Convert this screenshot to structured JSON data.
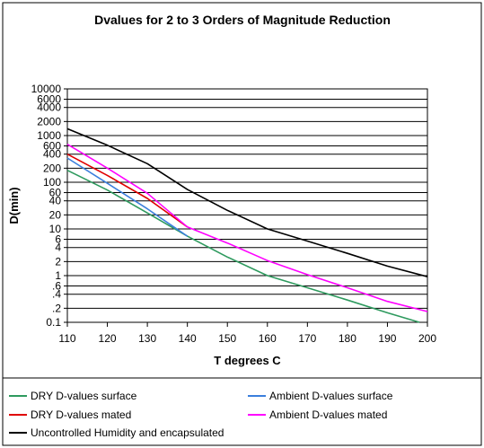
{
  "chart_data": {
    "type": "line",
    "title": "Dvalues for 2 to 3 Orders of Magnitude Reduction",
    "xlabel": "T degrees C",
    "ylabel": "D(min)",
    "xlim": [
      110,
      200
    ],
    "ylim": [
      0.1,
      10000
    ],
    "yscale": "log",
    "grid": "horizontal",
    "legend_position": "bottom",
    "x_ticks": [
      110,
      120,
      130,
      140,
      150,
      160,
      170,
      180,
      190,
      200
    ],
    "y_ticks": [
      {
        "value": 10000,
        "label": "10000"
      },
      {
        "value": 6000,
        "label": "6000"
      },
      {
        "value": 4000,
        "label": "4000"
      },
      {
        "value": 2000,
        "label": "2000"
      },
      {
        "value": 1000,
        "label": "1000"
      },
      {
        "value": 600,
        "label": "600"
      },
      {
        "value": 400,
        "label": "400"
      },
      {
        "value": 200,
        "label": "200"
      },
      {
        "value": 100,
        "label": "100"
      },
      {
        "value": 60,
        "label": "60"
      },
      {
        "value": 40,
        "label": "40"
      },
      {
        "value": 20,
        "label": "20"
      },
      {
        "value": 10,
        "label": "10"
      },
      {
        "value": 6,
        "label": "6"
      },
      {
        "value": 4,
        "label": "4"
      },
      {
        "value": 2,
        "label": "2"
      },
      {
        "value": 1,
        "label": "1"
      },
      {
        "value": 0.6,
        "label": ".6"
      },
      {
        "value": 0.4,
        "label": ".4"
      },
      {
        "value": 0.2,
        "label": ".2"
      },
      {
        "value": 0.1,
        "label": "0.1"
      }
    ],
    "series": [
      {
        "name": "DRY D-values surface",
        "color": "#2e9a5e",
        "points": [
          [
            110,
            180
          ],
          [
            120,
            68
          ],
          [
            130,
            22
          ],
          [
            140,
            7
          ],
          [
            150,
            2.5
          ],
          [
            160,
            1
          ],
          [
            170,
            0.55
          ],
          [
            180,
            0.3
          ],
          [
            190,
            0.16
          ],
          [
            198,
            0.1
          ]
        ]
      },
      {
        "name": "DRY D-values mated",
        "color": "#e00000",
        "points": [
          [
            110,
            400
          ],
          [
            120,
            140
          ],
          [
            130,
            45
          ],
          [
            140,
            11
          ]
        ]
      },
      {
        "name": "Uncontrolled Humidity and encapsulated",
        "color": "#000000",
        "points": [
          [
            110,
            1400
          ],
          [
            120,
            620
          ],
          [
            130,
            250
          ],
          [
            140,
            70
          ],
          [
            150,
            25
          ],
          [
            160,
            10
          ],
          [
            170,
            5.5
          ],
          [
            180,
            3
          ],
          [
            190,
            1.6
          ],
          [
            200,
            0.95
          ]
        ]
      },
      {
        "name": "Ambient D-values surface",
        "color": "#3b7fdc",
        "points": [
          [
            110,
            330
          ],
          [
            120,
            95
          ],
          [
            130,
            27
          ],
          [
            140,
            7
          ]
        ]
      },
      {
        "name": "Ambient D-values mated",
        "color": "#ff00ff",
        "points": [
          [
            110,
            650
          ],
          [
            120,
            200
          ],
          [
            130,
            58
          ],
          [
            140,
            11
          ],
          [
            150,
            5
          ],
          [
            160,
            2.1
          ],
          [
            170,
            1.05
          ],
          [
            180,
            0.55
          ],
          [
            190,
            0.28
          ],
          [
            200,
            0.17
          ]
        ]
      }
    ],
    "legend": [
      {
        "name": "DRY D-values surface",
        "color": "#2e9a5e"
      },
      {
        "name": "Ambient D-values surface",
        "color": "#3b7fdc"
      },
      {
        "name": "DRY D-values mated",
        "color": "#e00000"
      },
      {
        "name": "Ambient D-values mated",
        "color": "#ff00ff"
      },
      {
        "name": "Uncontrolled Humidity and encapsulated",
        "color": "#000000"
      }
    ]
  }
}
